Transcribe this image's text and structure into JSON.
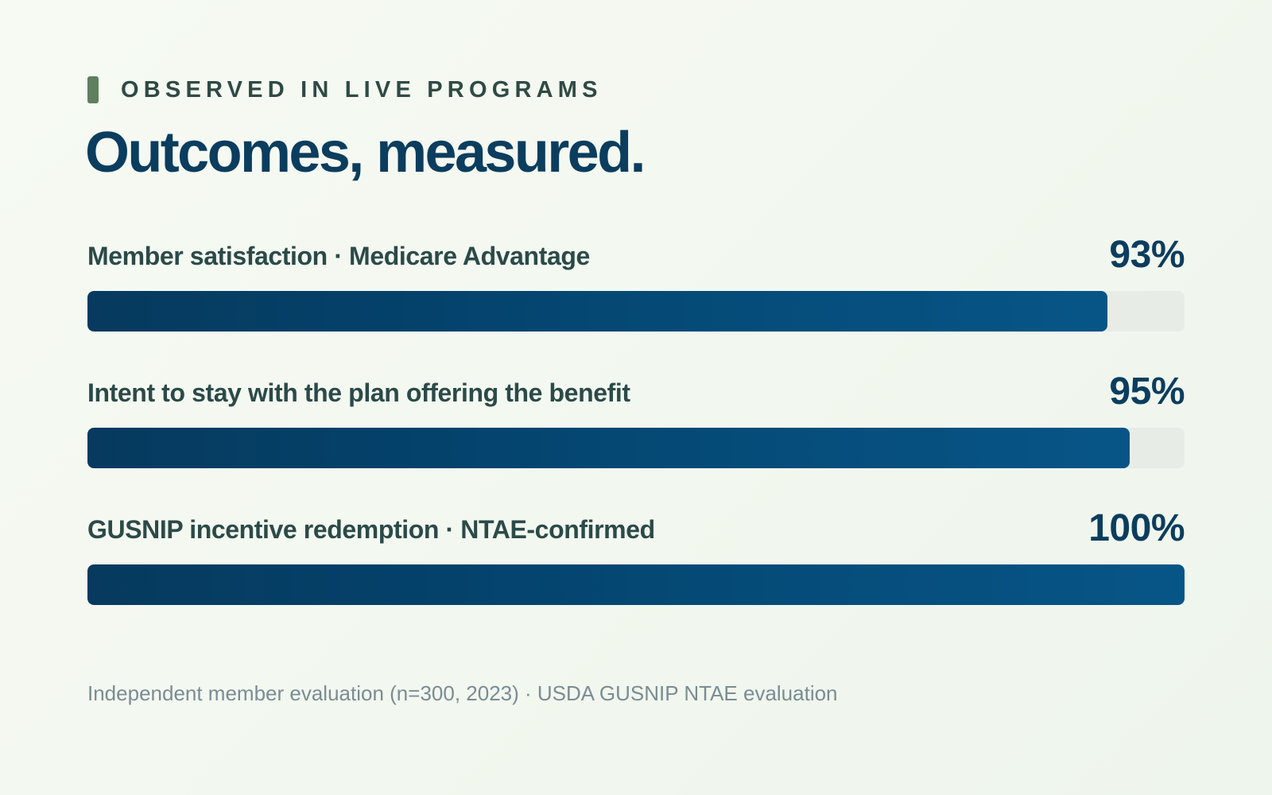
{
  "header": {
    "eyebrow": "OBSERVED IN LIVE PROGRAMS",
    "title": "Outcomes, measured."
  },
  "colors": {
    "accent_mark": "#5f7f5f",
    "title": "#0b3d5e",
    "bar_start": "#073a5e",
    "bar_end": "#075587",
    "track": "#e7ede6",
    "label": "#2b4a48",
    "footnote": "#7a8c94"
  },
  "chart_data": {
    "type": "bar",
    "orientation": "horizontal",
    "categories": [
      "Member satisfaction · Medicare Advantage",
      "Intent to stay with the plan offering the benefit",
      "GUSNIP incentive redemption · NTAE-confirmed"
    ],
    "values": [
      93,
      95,
      100
    ],
    "value_labels": [
      "93%",
      "95%",
      "100%"
    ],
    "unit": "%",
    "xlim": [
      0,
      100
    ],
    "grid": false
  },
  "footnote": "Independent member evaluation (n=300, 2023) · USDA GUSNIP NTAE evaluation"
}
